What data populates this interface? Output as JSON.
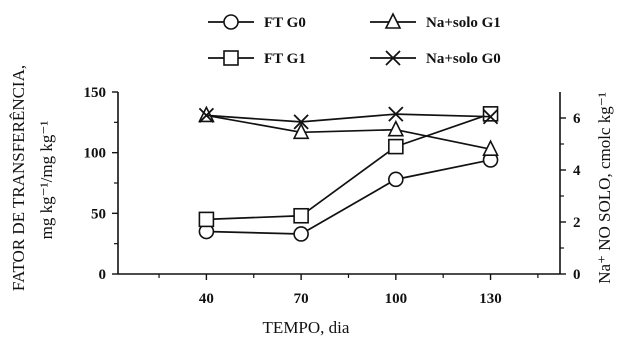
{
  "chart_data": {
    "type": "line",
    "x": [
      40,
      70,
      100,
      130
    ],
    "xlabel": "TEMPO, dia",
    "ylabel_left_line1": "FATOR DE TRANSFERÊNCIA,",
    "ylabel_left_line2": "mg kg⁻¹/mg kg⁻¹",
    "ylabel_right": "Na⁺ NO SOLO,  cmolc kg⁻¹",
    "xlim": [
      12,
      152
    ],
    "ylim_left": [
      0,
      150
    ],
    "ylim_right": [
      0,
      7
    ],
    "x_ticks": [
      "40",
      "70",
      "100",
      "130"
    ],
    "y_left_ticks": [
      "0",
      "50",
      "100",
      "150"
    ],
    "y_right_ticks": [
      "0",
      "2",
      "4",
      "6"
    ],
    "series": [
      {
        "name": "FT G0",
        "marker": "circle",
        "axis": "left",
        "values": [
          35,
          33,
          78,
          94
        ]
      },
      {
        "name": "FT G1",
        "marker": "square",
        "axis": "left",
        "values": [
          45,
          48,
          105,
          132
        ]
      },
      {
        "name": "Na+solo G1",
        "marker": "triangle",
        "axis": "right",
        "values": [
          6.1,
          5.45,
          5.55,
          4.8
        ]
      },
      {
        "name": "Na+solo G0",
        "marker": "x",
        "axis": "right",
        "values": [
          6.1,
          5.85,
          6.15,
          6.05
        ]
      }
    ],
    "legend_position": "top",
    "grid": false
  }
}
